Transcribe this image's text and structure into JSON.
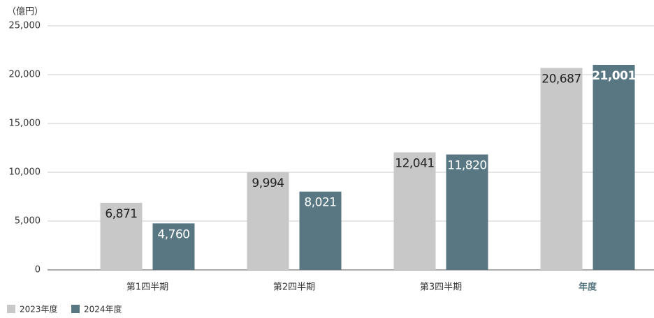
{
  "chart_data": {
    "type": "bar",
    "y_unit": "（億円）",
    "categories": [
      "第1四半期",
      "第2四半期",
      "第3四半期",
      "年度"
    ],
    "series": [
      {
        "name": "2023年度",
        "color": "#c8c8c8",
        "values": [
          6871,
          9994,
          12041,
          20687
        ],
        "value_labels": [
          "6,871",
          "9,994",
          "12,041",
          "20,687"
        ]
      },
      {
        "name": "2024年度",
        "color": "#587783",
        "values": [
          4760,
          8021,
          11820,
          21001
        ],
        "value_labels": [
          "4,760",
          "8,021",
          "11,820",
          "21,001"
        ]
      }
    ],
    "ylim": [
      0,
      25000
    ],
    "yticks": [
      0,
      {
        "value": 5000,
        "label": "5,000"
      },
      {
        "value": 10000,
        "label": "10,000"
      },
      {
        "value": 15000,
        "label": "15,000"
      },
      {
        "value": 20000,
        "label": "20,000"
      },
      {
        "value": 25000,
        "label": "25,000"
      }
    ],
    "grid": true,
    "legend": "bottom-left"
  }
}
